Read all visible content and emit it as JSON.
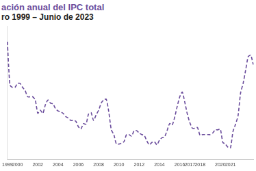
{
  "chart_data": {
    "type": "line",
    "title": "ación anual del IPC total",
    "subtitle": "ro 1999 – Junio de 2023",
    "categories": [
      "1999",
      null,
      null,
      null,
      "2000",
      null,
      null,
      null,
      null,
      null,
      null,
      null,
      "2002",
      null,
      null,
      null,
      null,
      null,
      null,
      null,
      "2004",
      null,
      null,
      null,
      null,
      null,
      null,
      null,
      "2006",
      null,
      null,
      null,
      null,
      null,
      null,
      null,
      "2008",
      null,
      null,
      null,
      null,
      null,
      null,
      null,
      "2010",
      null,
      null,
      null,
      null,
      null,
      null,
      null,
      "2012",
      null,
      null,
      null,
      null,
      null,
      null,
      null,
      "2014",
      null,
      null,
      null,
      null,
      null,
      null,
      null,
      "2016",
      null,
      null,
      null,
      "2017",
      null,
      null,
      null,
      "2018",
      null,
      null,
      null,
      null,
      null,
      null,
      null,
      "2020",
      null,
      null,
      null,
      "2021",
      null,
      null,
      null,
      null,
      null,
      null,
      null,
      null,
      null
    ],
    "values": [
      15.0,
      9.5,
      9.2,
      9.2,
      9.7,
      9.7,
      9.2,
      8.8,
      8.0,
      8.0,
      8.0,
      7.6,
      5.9,
      6.3,
      5.9,
      7.0,
      7.6,
      7.2,
      7.1,
      6.5,
      6.2,
      6.1,
      5.9,
      5.5,
      5.3,
      5.0,
      5.0,
      4.9,
      4.2,
      3.9,
      4.6,
      4.5,
      5.8,
      6.0,
      5.0,
      5.7,
      6.3,
      7.2,
      7.6,
      7.7,
      6.1,
      3.8,
      3.2,
      2.0,
      2.0,
      2.1,
      2.3,
      3.2,
      3.2,
      3.0,
      3.7,
      3.7,
      3.4,
      3.2,
      3.1,
      2.4,
      1.9,
      2.2,
      2.3,
      1.9,
      2.5,
      2.8,
      2.9,
      3.7,
      4.6,
      4.4,
      5.4,
      6.8,
      8.0,
      8.6,
      7.3,
      5.8,
      4.7,
      4.0,
      4.0,
      4.1,
      3.1,
      3.2,
      3.2,
      3.2,
      3.2,
      3.4,
      3.8,
      3.8,
      3.9,
      2.2,
      2.0,
      1.6,
      1.5,
      3.6,
      4.5,
      5.6,
      8.5,
      9.7,
      11.4,
      13.1,
      13.3,
      12.1
    ],
    "color": "#6a4c9c",
    "line_style": "dashed",
    "ylim": [
      0,
      17
    ],
    "grid": false,
    "tick_labels": "x"
  }
}
